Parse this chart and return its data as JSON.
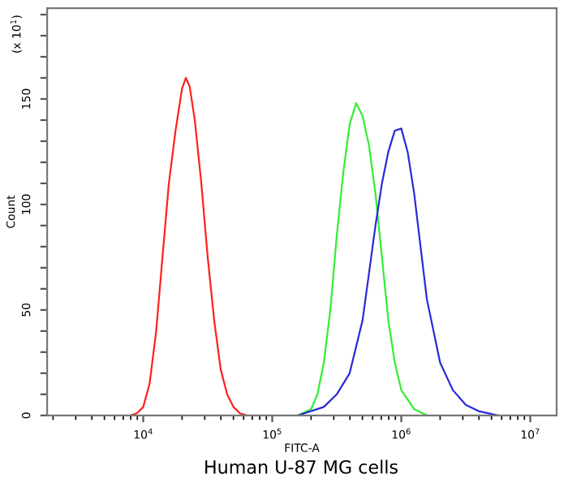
{
  "chart_data": {
    "type": "line",
    "xlabel": "FITC-A",
    "ylabel": "Count",
    "annotations": [
      "(x 10$^{1}$)",
      "Human U-87 MG cells"
    ],
    "log": "x",
    "grid": false,
    "legend": false,
    "marker": "none",
    "line_style": "solid",
    "xlim": [
      1800,
      16000000
    ],
    "ylim": [
      0,
      193
    ],
    "xticks": [
      {
        "value": 10000,
        "label": "10$^{4}$"
      },
      {
        "value": 100000,
        "label": "10$^{5}$"
      },
      {
        "value": 1000000,
        "label": "10$^{6}$"
      },
      {
        "value": 10000000,
        "label": "10$^{7}$"
      }
    ],
    "yticks": [
      0,
      {
        "value": 10,
        "label": null
      },
      {
        "value": 20,
        "label": null
      },
      {
        "value": 30,
        "label": null
      },
      {
        "value": 40,
        "label": null
      },
      50,
      {
        "value": 60,
        "label": null
      },
      {
        "value": 70,
        "label": null
      },
      {
        "value": 80,
        "label": null
      },
      {
        "value": 90,
        "label": null
      },
      100,
      {
        "value": 110,
        "label": null
      },
      {
        "value": 120,
        "label": null
      },
      {
        "value": 130,
        "label": null
      },
      {
        "value": 140,
        "label": null
      },
      150,
      {
        "value": 160,
        "label": null
      },
      {
        "value": 170,
        "label": null
      },
      {
        "value": 180,
        "label": null
      },
      {
        "value": 190,
        "label": null
      }
    ],
    "series": [
      {
        "color": "#ff2020",
        "x": [
          7940,
          8910,
          10000,
          11200,
          12600,
          14100,
          15800,
          17800,
          20000,
          21400,
          22900,
          25100,
          28200,
          31600,
          35500,
          39800,
          44700,
          50100,
          56200,
          63100
        ],
        "values": [
          0,
          1,
          4,
          15,
          40,
          75,
          110,
          135,
          155,
          160,
          156,
          140,
          110,
          75,
          45,
          22,
          10,
          4,
          1,
          0
        ]
      },
      {
        "color": "#33ee33",
        "x": [
          158000,
          200000,
          224000,
          251000,
          282000,
          316000,
          355000,
          398000,
          447000,
          501000,
          562000,
          631000,
          708000,
          794000,
          891000,
          1000000,
          1260000,
          1580000
        ],
        "values": [
          0,
          3,
          10,
          25,
          50,
          85,
          115,
          138,
          148,
          142,
          128,
          105,
          75,
          45,
          25,
          12,
          3,
          0
        ]
      },
      {
        "color": "#2a2ad8",
        "x": [
          158000,
          251000,
          316000,
          398000,
          501000,
          631000,
          708000,
          794000,
          891000,
          1000000,
          1120000,
          1260000,
          1410000,
          1580000,
          2000000,
          2510000,
          3160000,
          3980000,
          5620000
        ],
        "values": [
          0,
          4,
          10,
          20,
          45,
          90,
          110,
          125,
          135,
          136,
          125,
          105,
          80,
          55,
          25,
          12,
          5,
          2,
          0
        ]
      }
    ]
  }
}
